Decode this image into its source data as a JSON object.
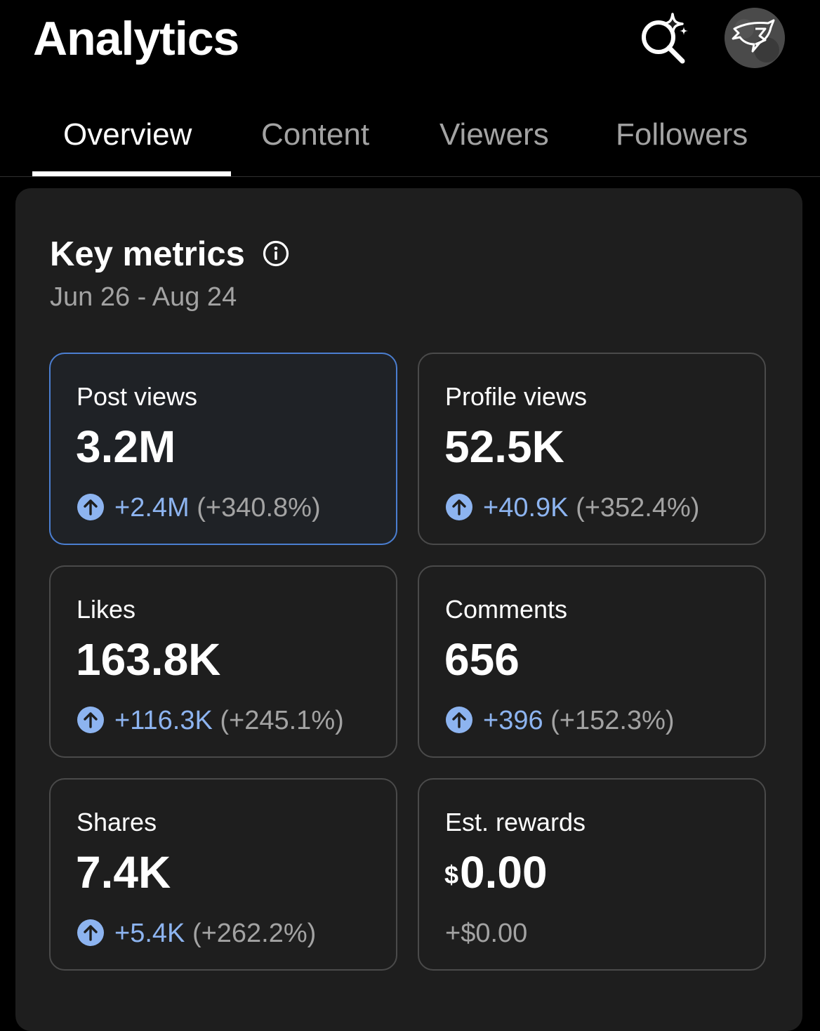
{
  "header": {
    "title": "Analytics"
  },
  "tabs": [
    {
      "label": "Overview",
      "active": true
    },
    {
      "label": "Content",
      "active": false
    },
    {
      "label": "Viewers",
      "active": false
    },
    {
      "label": "Followers",
      "active": false
    }
  ],
  "key_metrics": {
    "title": "Key metrics",
    "date_range": "Jun 26 - Aug 24",
    "metrics": [
      {
        "label": "Post views",
        "value": "3.2M",
        "delta": "+2.4M",
        "delta_pct": "(+340.8%)",
        "selected": true
      },
      {
        "label": "Profile views",
        "value": "52.5K",
        "delta": "+40.9K",
        "delta_pct": "(+352.4%)"
      },
      {
        "label": "Likes",
        "value": "163.8K",
        "delta": "+116.3K",
        "delta_pct": "(+245.1%)"
      },
      {
        "label": "Comments",
        "value": "656",
        "delta": "+396",
        "delta_pct": "(+152.3%)"
      },
      {
        "label": "Shares",
        "value": "7.4K",
        "delta": "+5.4K",
        "delta_pct": "(+262.2%)"
      },
      {
        "label": "Est. rewards",
        "currency": "$",
        "value": "0.00",
        "delta_plain": "+$0.00"
      }
    ]
  },
  "colors": {
    "background": "#000000",
    "card": "#1e1e1e",
    "accent_blue": "#8db4f0",
    "selected_border": "#4b7ed0",
    "muted_text": "#a3a3a3"
  },
  "icons": {
    "search": "ai-search-sparkle-icon",
    "info": "info-icon",
    "trend": "arrow-up-circle-icon"
  }
}
